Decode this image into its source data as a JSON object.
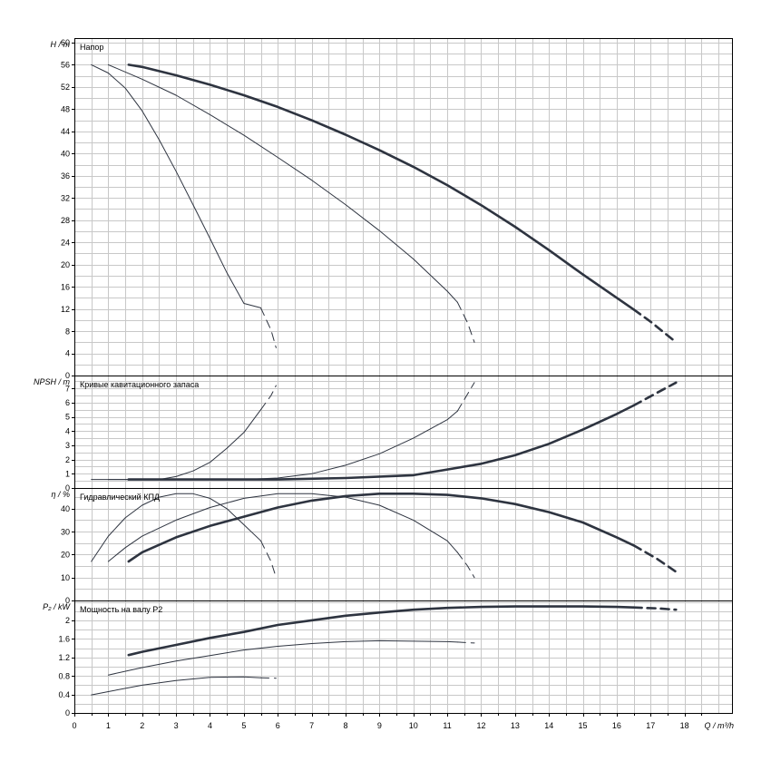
{
  "chart_data": {
    "type": "line",
    "x_axis": {
      "label": "Q / m³/h",
      "range": [
        0,
        19.4
      ],
      "tick_values": [
        0,
        1,
        2,
        3,
        4,
        5,
        6,
        7,
        8,
        9,
        10,
        11,
        12,
        13,
        14,
        15,
        16,
        17,
        18
      ]
    },
    "panels": [
      {
        "id": "head",
        "title": "Напор",
        "ylabel": "H / m",
        "ylim": [
          0,
          60.8
        ],
        "tick_values": [
          0,
          4,
          8,
          12,
          16,
          20,
          24,
          28,
          32,
          36,
          40,
          44,
          48,
          52,
          56,
          60
        ],
        "series": [
          {
            "weight": "heavy",
            "solid": [
              [
                1.6,
                56
              ],
              [
                2,
                55.6
              ],
              [
                3,
                54.1
              ],
              [
                4,
                52.4
              ],
              [
                5,
                50.5
              ],
              [
                6,
                48.4
              ],
              [
                7,
                46
              ],
              [
                8,
                43.4
              ],
              [
                9,
                40.6
              ],
              [
                10,
                37.6
              ],
              [
                11,
                34.3
              ],
              [
                12,
                30.7
              ],
              [
                13,
                26.8
              ],
              [
                14,
                22.6
              ],
              [
                15,
                18.2
              ],
              [
                16,
                14
              ],
              [
                16.5,
                11.9
              ]
            ],
            "dashed": [
              [
                16.5,
                11.9
              ],
              [
                17,
                9.7
              ],
              [
                17.75,
                6
              ]
            ]
          },
          {
            "weight": "light",
            "solid": [
              [
                1,
                56
              ],
              [
                2,
                53.4
              ],
              [
                3,
                50.5
              ],
              [
                4,
                47
              ],
              [
                5,
                43.3
              ],
              [
                6,
                39.3
              ],
              [
                7,
                35.2
              ],
              [
                8,
                30.8
              ],
              [
                9,
                26.1
              ],
              [
                10,
                21
              ],
              [
                11,
                15.2
              ],
              [
                11.3,
                13.2
              ]
            ],
            "dashed": [
              [
                11.3,
                13.2
              ],
              [
                11.6,
                9.5
              ],
              [
                11.8,
                6
              ]
            ]
          },
          {
            "weight": "light",
            "solid": [
              [
                0.5,
                56
              ],
              [
                1,
                54.5
              ],
              [
                1.5,
                51.8
              ],
              [
                2,
                47.7
              ],
              [
                2.5,
                42.5
              ],
              [
                3,
                36.8
              ],
              [
                3.5,
                30.8
              ],
              [
                4,
                24.7
              ],
              [
                4.5,
                18.5
              ],
              [
                5,
                13
              ],
              [
                5.5,
                12.2
              ]
            ],
            "dashed": [
              [
                5.5,
                12.2
              ],
              [
                5.8,
                8.2
              ],
              [
                5.95,
                5
              ]
            ]
          }
        ]
      },
      {
        "id": "npsh",
        "title": "Кривые кавитационного запаса",
        "ylabel": "NPSH / m",
        "ylim": [
          0,
          7.9
        ],
        "tick_values": [
          0,
          1,
          2,
          3,
          4,
          5,
          6,
          7
        ],
        "series": [
          {
            "weight": "heavy",
            "solid": [
              [
                1.6,
                0.6
              ],
              [
                4,
                0.6
              ],
              [
                6,
                0.6
              ],
              [
                8,
                0.7
              ],
              [
                10,
                0.9
              ],
              [
                11,
                1.3
              ],
              [
                12,
                1.7
              ],
              [
                13,
                2.3
              ],
              [
                14,
                3.1
              ],
              [
                15,
                4.1
              ],
              [
                16,
                5.2
              ],
              [
                16.5,
                5.8
              ]
            ],
            "dashed": [
              [
                16.5,
                5.8
              ],
              [
                17.2,
                6.7
              ],
              [
                17.75,
                7.4
              ]
            ]
          },
          {
            "weight": "light",
            "solid": [
              [
                1,
                0.6
              ],
              [
                3,
                0.6
              ],
              [
                5,
                0.6
              ],
              [
                6,
                0.7
              ],
              [
                7,
                1.0
              ],
              [
                8,
                1.6
              ],
              [
                9,
                2.4
              ],
              [
                10,
                3.5
              ],
              [
                11,
                4.8
              ],
              [
                11.3,
                5.4
              ]
            ],
            "dashed": [
              [
                11.3,
                5.4
              ],
              [
                11.6,
                6.6
              ],
              [
                11.8,
                7.4
              ]
            ]
          },
          {
            "weight": "light",
            "solid": [
              [
                0.5,
                0.6
              ],
              [
                2,
                0.6
              ],
              [
                2.5,
                0.6
              ],
              [
                3,
                0.8
              ],
              [
                3.5,
                1.2
              ],
              [
                4,
                1.8
              ],
              [
                4.5,
                2.8
              ],
              [
                5,
                3.9
              ],
              [
                5.5,
                5.5
              ]
            ],
            "dashed": [
              [
                5.5,
                5.5
              ],
              [
                5.8,
                6.5
              ],
              [
                5.95,
                7.2
              ]
            ]
          }
        ]
      },
      {
        "id": "eff",
        "title": "Гидравлический КПД",
        "ylabel": "η / %",
        "ylim": [
          0,
          49
        ],
        "tick_values": [
          0,
          10,
          20,
          30,
          40
        ],
        "series": [
          {
            "weight": "heavy",
            "solid": [
              [
                1.6,
                17
              ],
              [
                2,
                21
              ],
              [
                3,
                27.5
              ],
              [
                4,
                32.5
              ],
              [
                5,
                36.5
              ],
              [
                6,
                40.5
              ],
              [
                7,
                43.5
              ],
              [
                8,
                45.5
              ],
              [
                9,
                46.5
              ],
              [
                10,
                46.5
              ],
              [
                11,
                46
              ],
              [
                12,
                44.5
              ],
              [
                13,
                42
              ],
              [
                14,
                38.5
              ],
              [
                15,
                34
              ],
              [
                16,
                27.5
              ],
              [
                16.5,
                24
              ]
            ],
            "dashed": [
              [
                16.5,
                24
              ],
              [
                17.2,
                18
              ],
              [
                17.75,
                12.5
              ]
            ]
          },
          {
            "weight": "light",
            "solid": [
              [
                1,
                17
              ],
              [
                1.5,
                23
              ],
              [
                2,
                28
              ],
              [
                3,
                35
              ],
              [
                4,
                40.5
              ],
              [
                5,
                44.5
              ],
              [
                6,
                46.5
              ],
              [
                7,
                46.5
              ],
              [
                8,
                45
              ],
              [
                9,
                41.5
              ],
              [
                10,
                35
              ],
              [
                11,
                26
              ],
              [
                11.3,
                21
              ]
            ],
            "dashed": [
              [
                11.3,
                21
              ],
              [
                11.6,
                15
              ],
              [
                11.8,
                10
              ]
            ]
          },
          {
            "weight": "light",
            "solid": [
              [
                0.5,
                17
              ],
              [
                1,
                28
              ],
              [
                1.5,
                36
              ],
              [
                2,
                41.5
              ],
              [
                2.5,
                45
              ],
              [
                3,
                46.5
              ],
              [
                3.5,
                46.5
              ],
              [
                4,
                44.5
              ],
              [
                4.5,
                40
              ],
              [
                5,
                33
              ],
              [
                5.5,
                26
              ]
            ],
            "dashed": [
              [
                5.5,
                26
              ],
              [
                5.8,
                17
              ],
              [
                5.95,
                10
              ]
            ]
          }
        ]
      },
      {
        "id": "power",
        "title": "Мощность на валу P2",
        "ylabel": "P₂ / kW",
        "ylim": [
          0,
          2.43
        ],
        "tick_values": [
          0,
          0.4,
          0.8,
          1.2,
          1.6,
          2
        ],
        "series": [
          {
            "weight": "heavy",
            "solid": [
              [
                1.6,
                1.25
              ],
              [
                2,
                1.32
              ],
              [
                3,
                1.47
              ],
              [
                4,
                1.62
              ],
              [
                5,
                1.75
              ],
              [
                6,
                1.9
              ],
              [
                7,
                2.0
              ],
              [
                8,
                2.1
              ],
              [
                9,
                2.17
              ],
              [
                10,
                2.23
              ],
              [
                11,
                2.27
              ],
              [
                12,
                2.29
              ],
              [
                13,
                2.3
              ],
              [
                14,
                2.3
              ],
              [
                15,
                2.3
              ],
              [
                16,
                2.29
              ],
              [
                16.5,
                2.28
              ]
            ],
            "dashed": [
              [
                16.5,
                2.28
              ],
              [
                17.2,
                2.26
              ],
              [
                17.75,
                2.23
              ]
            ]
          },
          {
            "weight": "light",
            "solid": [
              [
                1,
                0.82
              ],
              [
                2,
                0.98
              ],
              [
                3,
                1.12
              ],
              [
                4,
                1.24
              ],
              [
                5,
                1.36
              ],
              [
                6,
                1.44
              ],
              [
                7,
                1.5
              ],
              [
                8,
                1.54
              ],
              [
                9,
                1.56
              ],
              [
                10,
                1.55
              ],
              [
                11,
                1.54
              ],
              [
                11.3,
                1.53
              ]
            ],
            "dashed": [
              [
                11.3,
                1.53
              ],
              [
                11.8,
                1.51
              ]
            ]
          },
          {
            "weight": "light",
            "solid": [
              [
                0.5,
                0.39
              ],
              [
                1,
                0.46
              ],
              [
                2,
                0.6
              ],
              [
                3,
                0.7
              ],
              [
                4,
                0.77
              ],
              [
                5,
                0.78
              ],
              [
                5.5,
                0.76
              ]
            ],
            "dashed": [
              [
                5.5,
                0.76
              ],
              [
                5.95,
                0.75
              ]
            ]
          }
        ]
      }
    ]
  }
}
